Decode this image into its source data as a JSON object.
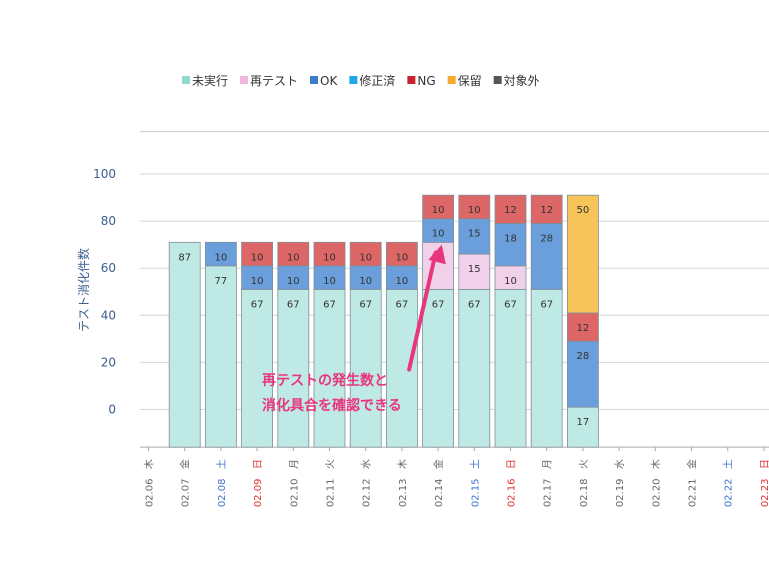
{
  "chart_data": {
    "type": "bar",
    "stacked": true,
    "ylabel": "テスト消化件数",
    "ylim": [
      -16,
      118
    ],
    "yticks": [
      0,
      20,
      40,
      60,
      80,
      100
    ],
    "grid": true,
    "legend_position": "top-left",
    "categories": [
      {
        "date": "02.06",
        "weekday": "木",
        "day_type": "weekday"
      },
      {
        "date": "02.07",
        "weekday": "金",
        "day_type": "weekday"
      },
      {
        "date": "02.08",
        "weekday": "土",
        "day_type": "saturday"
      },
      {
        "date": "02.09",
        "weekday": "日",
        "day_type": "sunday"
      },
      {
        "date": "02.10",
        "weekday": "月",
        "day_type": "weekday"
      },
      {
        "date": "02.11",
        "weekday": "火",
        "day_type": "weekday"
      },
      {
        "date": "02.12",
        "weekday": "水",
        "day_type": "weekday"
      },
      {
        "date": "02.13",
        "weekday": "木",
        "day_type": "weekday"
      },
      {
        "date": "02.14",
        "weekday": "金",
        "day_type": "weekday"
      },
      {
        "date": "02.15",
        "weekday": "土",
        "day_type": "saturday"
      },
      {
        "date": "02.16",
        "weekday": "日",
        "day_type": "sunday"
      },
      {
        "date": "02.17",
        "weekday": "月",
        "day_type": "weekday"
      },
      {
        "date": "02.18",
        "weekday": "火",
        "day_type": "weekday"
      },
      {
        "date": "02.19",
        "weekday": "水",
        "day_type": "weekday"
      },
      {
        "date": "02.20",
        "weekday": "木",
        "day_type": "weekday"
      },
      {
        "date": "02.21",
        "weekday": "金",
        "day_type": "weekday"
      },
      {
        "date": "02.22",
        "weekday": "土",
        "day_type": "saturday"
      },
      {
        "date": "02.23",
        "weekday": "日",
        "day_type": "sunday"
      }
    ],
    "series": [
      {
        "name": "未実行",
        "legend_color": "#93d8d0",
        "fill": "#bfe9e4",
        "values": [
          null,
          87,
          77,
          67,
          67,
          67,
          67,
          67,
          67,
          67,
          67,
          67,
          17,
          null,
          null,
          null,
          null,
          null
        ]
      },
      {
        "name": "再テスト",
        "legend_color": "#f0b8e0",
        "fill": "#f1d0ea",
        "values": [
          null,
          null,
          null,
          null,
          null,
          null,
          null,
          null,
          20,
          15,
          10,
          null,
          null,
          null,
          null,
          null,
          null,
          null
        ]
      },
      {
        "name": "OK",
        "legend_color": "#3a7dc9",
        "fill": "#6a9fdc",
        "values": [
          null,
          null,
          10,
          10,
          10,
          10,
          10,
          10,
          10,
          15,
          18,
          28,
          28,
          null,
          null,
          null,
          null,
          null
        ]
      },
      {
        "name": "修正済",
        "legend_color": "#1aa9e6",
        "fill": "#4cb8ea",
        "values": [
          null,
          null,
          null,
          null,
          null,
          null,
          null,
          null,
          null,
          null,
          null,
          null,
          null,
          null,
          null,
          null,
          null,
          null
        ]
      },
      {
        "name": "NG",
        "legend_color": "#c8232c",
        "fill": "#dd6666",
        "values": [
          null,
          null,
          null,
          10,
          10,
          10,
          10,
          10,
          10,
          10,
          12,
          12,
          12,
          null,
          null,
          null,
          null,
          null
        ]
      },
      {
        "name": "保留",
        "legend_color": "#f5ab2e",
        "fill": "#f7c45a",
        "values": [
          null,
          null,
          null,
          null,
          null,
          null,
          null,
          null,
          null,
          null,
          null,
          null,
          50,
          null,
          null,
          null,
          null,
          null
        ]
      },
      {
        "name": "対象外",
        "legend_color": "#555555",
        "fill": "#777777",
        "values": [
          null,
          null,
          null,
          null,
          null,
          null,
          null,
          null,
          null,
          null,
          null,
          null,
          null,
          null,
          null,
          null,
          null,
          null
        ]
      }
    ],
    "annotations": [
      {
        "text_lines": [
          "再テストの発生数と",
          "消化具合を確認できる"
        ],
        "color": "#e8357d",
        "arrow_from_value": [
          7.2,
          17
        ],
        "arrow_to_value": [
          8.1,
          70
        ]
      }
    ],
    "day_type_colors": {
      "weekday": "#666666",
      "saturday": "#3a6fd1",
      "sunday": "#e03030"
    }
  }
}
